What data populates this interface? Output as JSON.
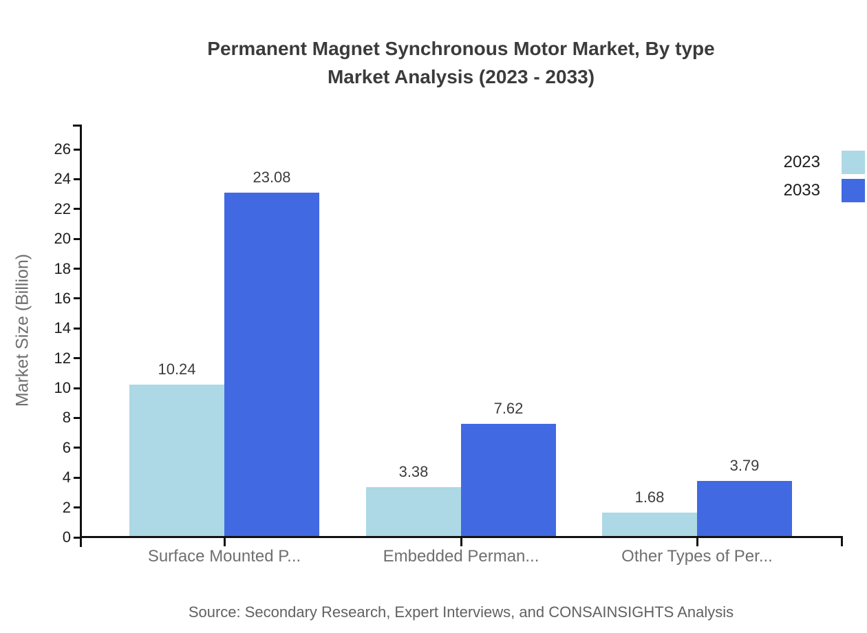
{
  "title": {
    "line1": "Permanent Magnet Synchronous Motor Market, By type",
    "line2": "Market Analysis (2023 - 2033)"
  },
  "source": "Source: Secondary Research, Expert Interviews, and CONSAINSIGHTS Analysis",
  "colors": {
    "series_2023": "#ADD8E6",
    "series_2033": "#4169E1",
    "axis": "#111111",
    "title_text": "#3b3b3b",
    "muted_text": "#6f6f6f"
  },
  "chart_data": {
    "type": "bar",
    "title": "Permanent Magnet Synchronous Motor Market, By type Market Analysis (2023 - 2033)",
    "xlabel": "",
    "ylabel": "Market Size (Billion)",
    "categories": [
      "Surface Mounted P...",
      "Embedded Perman...",
      "Other Types of Per..."
    ],
    "series": [
      {
        "name": "2023",
        "color": "#ADD8E6",
        "values": [
          10.24,
          3.38,
          1.68
        ]
      },
      {
        "name": "2033",
        "color": "#4169E1",
        "values": [
          23.08,
          7.62,
          3.79
        ]
      }
    ],
    "ylim": [
      0,
      26
    ],
    "ytick_step": 2,
    "grid": false,
    "legend_position": "top-right",
    "value_label_format": "2-decimals"
  }
}
